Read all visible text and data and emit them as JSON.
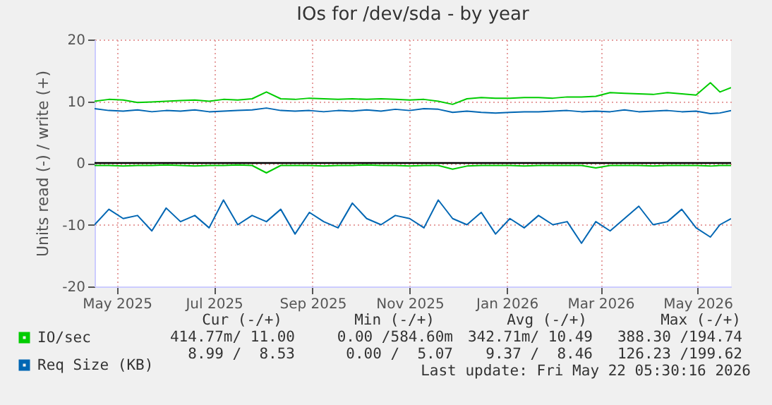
{
  "chart_data": {
    "type": "line",
    "title": "IOs for /dev/sda - by year",
    "ylabel": "Units read (-) / write (+)",
    "x": [
      "2025-04-17",
      "2025-04-26",
      "2025-05-05",
      "2025-05-14",
      "2025-05-23",
      "2025-06-01",
      "2025-06-10",
      "2025-06-19",
      "2025-06-28",
      "2025-07-07",
      "2025-07-16",
      "2025-07-25",
      "2025-08-03",
      "2025-08-12",
      "2025-08-21",
      "2025-08-30",
      "2025-09-08",
      "2025-09-17",
      "2025-09-26",
      "2025-10-05",
      "2025-10-14",
      "2025-10-23",
      "2025-11-01",
      "2025-11-10",
      "2025-11-19",
      "2025-11-28",
      "2025-12-07",
      "2025-12-16",
      "2025-12-25",
      "2026-01-03",
      "2026-01-12",
      "2026-01-21",
      "2026-01-30",
      "2026-02-08",
      "2026-02-17",
      "2026-02-26",
      "2026-03-07",
      "2026-03-16",
      "2026-03-25",
      "2026-04-03",
      "2026-04-12",
      "2026-04-21",
      "2026-04-30",
      "2026-05-09",
      "2026-05-15",
      "2026-05-22"
    ],
    "series": [
      {
        "name": "IO/sec",
        "color": "#00cc00",
        "values": [
          10.0,
          10.3,
          10.2,
          9.8,
          9.9,
          10.0,
          10.1,
          10.2,
          10.0,
          10.3,
          10.2,
          10.4,
          11.5,
          10.4,
          10.3,
          10.5,
          10.4,
          10.3,
          10.4,
          10.3,
          10.4,
          10.3,
          10.2,
          10.3,
          10.0,
          9.5,
          10.4,
          10.6,
          10.5,
          10.5,
          10.6,
          10.6,
          10.5,
          10.7,
          10.7,
          10.8,
          11.4,
          11.3,
          11.2,
          11.1,
          11.4,
          11.2,
          11.0,
          13.0,
          11.5,
          12.2
        ]
      },
      {
        "color": "#00cc00",
        "values": [
          -0.4,
          -0.4,
          -0.5,
          -0.4,
          -0.4,
          -0.3,
          -0.4,
          -0.5,
          -0.4,
          -0.4,
          -0.3,
          -0.4,
          -1.6,
          -0.4,
          -0.4,
          -0.4,
          -0.5,
          -0.4,
          -0.4,
          -0.3,
          -0.4,
          -0.4,
          -0.5,
          -0.4,
          -0.4,
          -1.0,
          -0.5,
          -0.4,
          -0.4,
          -0.4,
          -0.5,
          -0.4,
          -0.4,
          -0.4,
          -0.4,
          -0.8,
          -0.4,
          -0.4,
          -0.4,
          -0.5,
          -0.4,
          -0.4,
          -0.4,
          -0.5,
          -0.4,
          -0.4
        ]
      },
      {
        "name": "Req Size (KB)",
        "color": "#0066b3",
        "values": [
          8.8,
          8.5,
          8.4,
          8.6,
          8.3,
          8.5,
          8.4,
          8.6,
          8.3,
          8.4,
          8.5,
          8.6,
          8.9,
          8.5,
          8.4,
          8.5,
          8.3,
          8.5,
          8.4,
          8.6,
          8.4,
          8.7,
          8.5,
          8.8,
          8.7,
          8.2,
          8.4,
          8.2,
          8.1,
          8.2,
          8.3,
          8.3,
          8.4,
          8.5,
          8.3,
          8.4,
          8.3,
          8.6,
          8.3,
          8.4,
          8.5,
          8.3,
          8.4,
          8.0,
          8.1,
          8.5
        ]
      },
      {
        "color": "#0066b3",
        "values": [
          -10,
          -7.5,
          -9,
          -8.5,
          -11,
          -7.3,
          -9.5,
          -8.5,
          -10.5,
          -6,
          -10,
          -8.5,
          -9.5,
          -7.5,
          -11.5,
          -8,
          -9.5,
          -10.5,
          -6.5,
          -9,
          -10,
          -8.5,
          -9,
          -10.5,
          -6,
          -9,
          -10,
          -8,
          -11.5,
          -9,
          -10.5,
          -8.5,
          -10,
          -9.5,
          -13,
          -9.5,
          -11,
          -9,
          -7,
          -10,
          -9.5,
          -7.5,
          -10.5,
          -12,
          -10,
          -9
        ]
      }
    ],
    "xlim": [
      "2025-04-17",
      "2026-05-22"
    ],
    "xticks": [
      {
        "value": "2025-05-01",
        "label": "May 2025"
      },
      {
        "value": "2025-07-01",
        "label": "Jul 2025"
      },
      {
        "value": "2025-09-01",
        "label": "Sep 2025"
      },
      {
        "value": "2025-11-01",
        "label": "Nov 2025"
      },
      {
        "value": "2026-01-01",
        "label": "Jan 2026"
      },
      {
        "value": "2026-03-01",
        "label": "Mar 2026"
      },
      {
        "value": "2026-05-01",
        "label": "May 2026"
      }
    ],
    "ylim": [
      -20,
      20
    ],
    "yticks": [
      -20,
      -10,
      0,
      10,
      20
    ],
    "grid": true,
    "legend": "bottom left",
    "ref_lines": [
      {
        "axis": "y",
        "value": 0,
        "color": "#000000"
      }
    ],
    "annotations": [
      "Cur (-/+)",
      "Min (-/+)",
      "Avg (-/+)",
      "Max (-/+)",
      "414.77m/ 11.00",
      "0.00 /584.60m",
      "342.71m/ 10.49",
      "388.30 /194.74",
      "8.99 /  8.53",
      "0.00 /  5.07",
      "9.37 /  8.46",
      "126.23 /199.62",
      "Last update: Fri May 22 05:30:16 2026"
    ]
  }
}
